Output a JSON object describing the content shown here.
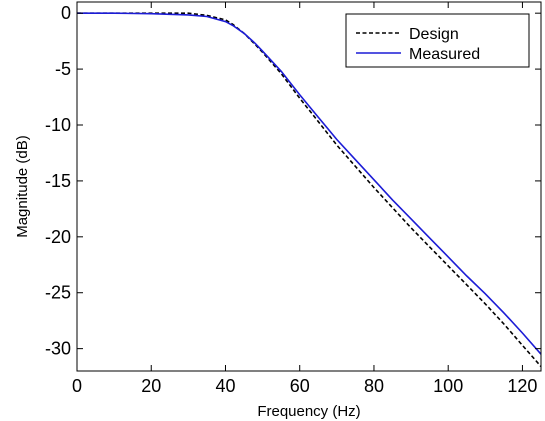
{
  "chart_data": {
    "type": "line",
    "xlabel": "Frequency (Hz)",
    "ylabel": "Magnitude (dB)",
    "xlim": [
      0,
      125
    ],
    "ylim": [
      -32,
      1
    ],
    "xticks": [
      0,
      20,
      40,
      60,
      80,
      100,
      120
    ],
    "yticks": [
      0,
      -5,
      -10,
      -15,
      -20,
      -25,
      -30
    ],
    "grid": false,
    "legend_position": "top-right",
    "series": [
      {
        "name": "Design",
        "style": "dashed",
        "color": "#000000",
        "x": [
          0,
          10,
          20,
          25,
          30,
          35,
          40,
          42,
          45,
          48,
          50,
          55,
          60,
          65,
          70,
          75,
          80,
          85,
          90,
          95,
          100,
          105,
          110,
          115,
          120,
          125
        ],
        "y": [
          0,
          0,
          0,
          0,
          0,
          -0.2,
          -0.6,
          -1.0,
          -1.8,
          -2.8,
          -3.5,
          -5.4,
          -7.6,
          -9.7,
          -11.8,
          -13.7,
          -15.6,
          -17.4,
          -19.2,
          -20.9,
          -22.6,
          -24.3,
          -26.0,
          -27.8,
          -29.7,
          -31.6
        ]
      },
      {
        "name": "Measured",
        "style": "solid",
        "color": "#1c1cd6",
        "x": [
          0,
          10,
          20,
          25,
          30,
          35,
          40,
          42,
          45,
          48,
          50,
          55,
          60,
          65,
          70,
          75,
          80,
          85,
          90,
          95,
          100,
          105,
          110,
          115,
          120,
          125
        ],
        "y": [
          0,
          0,
          -0.05,
          -0.1,
          -0.15,
          -0.3,
          -0.75,
          -1.1,
          -1.8,
          -2.7,
          -3.4,
          -5.2,
          -7.3,
          -9.3,
          -11.3,
          -13.1,
          -14.9,
          -16.7,
          -18.4,
          -20.1,
          -21.8,
          -23.5,
          -25.1,
          -26.8,
          -28.6,
          -30.5
        ]
      }
    ]
  }
}
